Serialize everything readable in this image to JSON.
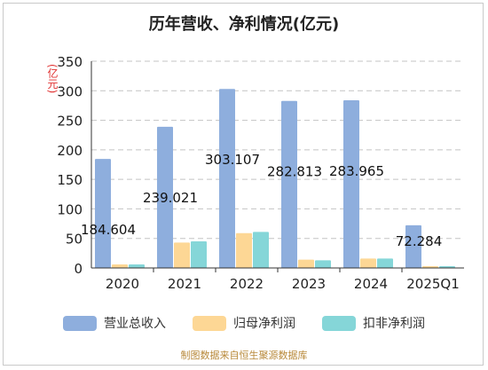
{
  "chart_data": {
    "type": "bar",
    "title": "历年营收、净利情况(亿元)",
    "ylabel": "(亿元)",
    "ylim": [
      0,
      350
    ],
    "yticks": [
      0,
      50,
      100,
      150,
      200,
      250,
      300,
      350
    ],
    "grid": true,
    "legend_position": "bottom",
    "categories": [
      "2020",
      "2021",
      "2022",
      "2023",
      "2024",
      "2025Q1"
    ],
    "series": [
      {
        "name": "营业总收入",
        "color": "#8eaedd",
        "values": [
          184.604,
          239.021,
          303.107,
          282.813,
          283.965,
          72.284
        ],
        "labels": [
          "184.604",
          "239.021",
          "303.107",
          "282.813",
          "283.965",
          "72.284"
        ]
      },
      {
        "name": "归母净利润",
        "color": "#fdd795",
        "values": [
          6,
          43,
          59,
          14,
          16,
          3
        ]
      },
      {
        "name": "扣非净利润",
        "color": "#85d6d8",
        "values": [
          6,
          45,
          61,
          13,
          16,
          3
        ]
      }
    ],
    "source": "制图数据来自恒生聚源数据库"
  }
}
